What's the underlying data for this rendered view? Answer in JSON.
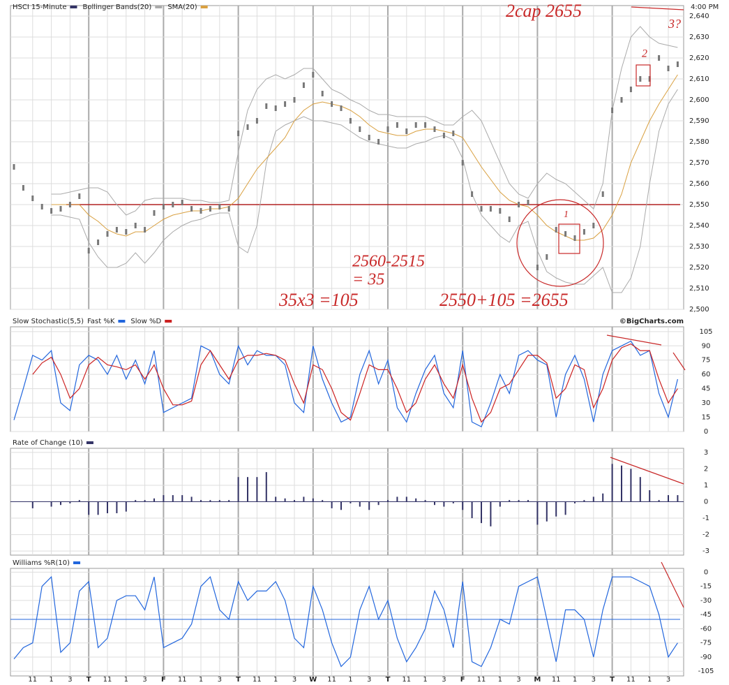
{
  "chart_data": [
    {
      "type": "candlestick",
      "time_label": "4:00 PM",
      "series": [
        {
          "name": "HSCI 15-Minute",
          "color": "#333366",
          "values": [
            2568,
            2558,
            2553,
            2549,
            2547,
            2548,
            2550,
            2554,
            2528,
            2532,
            2536,
            2538,
            2537,
            2540,
            2538,
            2546,
            2549,
            2550,
            2551,
            2548,
            2547,
            2548,
            2549,
            2548,
            2584,
            2587,
            2590,
            2597,
            2596,
            2598,
            2600,
            2607,
            2612,
            2603,
            2598,
            2596,
            2590,
            2586,
            2582,
            2580,
            2586,
            2588,
            2585,
            2588,
            2588,
            2586,
            2583,
            2584,
            2570,
            2555,
            2548,
            2548,
            2547,
            2543,
            2550,
            2551,
            2520,
            2525,
            2538,
            2536,
            2534,
            2537,
            2540,
            2555,
            2595,
            2600,
            2605,
            2610,
            2610,
            2620,
            2615,
            2617
          ]
        },
        {
          "name": "Bollinger Bands(20)",
          "color": "#aaaaaa",
          "upper": [
            null,
            null,
            null,
            null,
            2555,
            2555,
            2556,
            2557,
            2558,
            2558,
            2556,
            2550,
            2545,
            2547,
            2552,
            2553,
            2553,
            2553,
            2553,
            2552,
            2552,
            2551,
            2551,
            2552,
            2575,
            2595,
            2605,
            2610,
            2612,
            2610,
            2612,
            2615,
            2615,
            2610,
            2605,
            2603,
            2600,
            2598,
            2595,
            2593,
            2593,
            2592,
            2592,
            2592,
            2592,
            2590,
            2588,
            2588,
            2592,
            2595,
            2590,
            2580,
            2570,
            2560,
            2555,
            2553,
            2560,
            2565,
            2562,
            2560,
            2556,
            2552,
            2548,
            2560,
            2595,
            2615,
            2630,
            2635,
            2630,
            2627,
            2626,
            2625
          ],
          "lower": [
            null,
            null,
            null,
            null,
            2545,
            2545,
            2544,
            2543,
            2532,
            2525,
            2520,
            2520,
            2522,
            2527,
            2522,
            2527,
            2533,
            2537,
            2540,
            2542,
            2543,
            2545,
            2546,
            2546,
            2530,
            2527,
            2540,
            2570,
            2585,
            2588,
            2590,
            2592,
            2590,
            2590,
            2589,
            2588,
            2585,
            2582,
            2580,
            2579,
            2578,
            2577,
            2577,
            2579,
            2580,
            2582,
            2583,
            2581,
            2572,
            2555,
            2545,
            2540,
            2535,
            2532,
            2540,
            2542,
            2528,
            2518,
            2515,
            2513,
            2512,
            2512,
            2516,
            2520,
            2508,
            2508,
            2515,
            2530,
            2560,
            2585,
            2598,
            2605
          ]
        },
        {
          "name": "SMA(20)",
          "color": "#d9a040",
          "values": [
            null,
            null,
            null,
            null,
            2550,
            2550,
            2550,
            2550,
            2545,
            2542,
            2538,
            2536,
            2535,
            2537,
            2537,
            2540,
            2543,
            2545,
            2546,
            2547,
            2547,
            2548,
            2548,
            2549,
            2553,
            2560,
            2567,
            2572,
            2577,
            2582,
            2590,
            2595,
            2598,
            2599,
            2598,
            2597,
            2595,
            2592,
            2588,
            2585,
            2584,
            2583,
            2583,
            2585,
            2586,
            2586,
            2585,
            2584,
            2582,
            2575,
            2568,
            2562,
            2556,
            2552,
            2550,
            2549,
            2545,
            2540,
            2537,
            2535,
            2533,
            2533,
            2534,
            2538,
            2545,
            2555,
            2570,
            2580,
            2590,
            2598,
            2605,
            2612
          ]
        }
      ],
      "reference_line": {
        "value": 2550,
        "color": "#b22222"
      },
      "annotations": [
        "2cap 2655",
        "3?",
        "2",
        "1",
        "2560-2515",
        "= 35",
        "35x3 =105",
        "2550+105 =2655"
      ],
      "ylim": [
        2500,
        2645
      ],
      "yticks": [
        {
          "value": 2500,
          "label": "2,500"
        },
        {
          "value": 2510,
          "label": "2,510"
        },
        {
          "value": 2520,
          "label": "2,520"
        },
        {
          "value": 2530,
          "label": "2,530"
        },
        {
          "value": 2540,
          "label": "2,540"
        },
        {
          "value": 2550,
          "label": "2,550"
        },
        {
          "value": 2560,
          "label": "2,560"
        },
        {
          "value": 2570,
          "label": "2,570"
        },
        {
          "value": 2580,
          "label": "2,580"
        },
        {
          "value": 2590,
          "label": "2,590"
        },
        {
          "value": 2600,
          "label": "2,600"
        },
        {
          "value": 2610,
          "label": "2,610"
        },
        {
          "value": 2620,
          "label": "2,620"
        },
        {
          "value": 2630,
          "label": "2,630"
        },
        {
          "value": 2640,
          "label": "2,640"
        }
      ],
      "grid": true
    },
    {
      "type": "line",
      "title": "Slow Stochastic(5,5)",
      "source": "©BigCharts.com",
      "series": [
        {
          "name": "Fast %K",
          "color": "#2266dd",
          "values": [
            12,
            45,
            80,
            75,
            85,
            30,
            22,
            70,
            80,
            75,
            60,
            80,
            55,
            75,
            50,
            85,
            20,
            25,
            30,
            35,
            90,
            85,
            60,
            50,
            90,
            70,
            85,
            80,
            80,
            70,
            30,
            20,
            90,
            55,
            30,
            10,
            15,
            60,
            85,
            50,
            75,
            25,
            10,
            40,
            65,
            80,
            40,
            25,
            85,
            10,
            5,
            30,
            60,
            40,
            80,
            85,
            75,
            70,
            15,
            60,
            80,
            55,
            10,
            60,
            85,
            90,
            95,
            80,
            85,
            40,
            15,
            55
          ]
        },
        {
          "name": "Slow %D",
          "color": "#cc2222",
          "values": [
            null,
            null,
            60,
            72,
            78,
            60,
            35,
            45,
            70,
            78,
            70,
            68,
            65,
            70,
            55,
            70,
            45,
            28,
            28,
            32,
            70,
            85,
            70,
            55,
            75,
            80,
            80,
            82,
            80,
            75,
            50,
            30,
            70,
            65,
            45,
            20,
            12,
            40,
            70,
            65,
            65,
            45,
            20,
            30,
            55,
            70,
            50,
            35,
            70,
            35,
            10,
            20,
            45,
            50,
            65,
            80,
            80,
            72,
            35,
            45,
            70,
            65,
            25,
            45,
            75,
            88,
            92,
            85,
            85,
            55,
            30,
            45
          ]
        }
      ],
      "ylim": [
        0,
        110
      ],
      "yticks": [
        0,
        15,
        30,
        45,
        60,
        75,
        90,
        105
      ],
      "grid": true
    },
    {
      "type": "bar",
      "title": "Rate of Change (10)",
      "color": "#333366",
      "values": [
        null,
        null,
        -0.4,
        null,
        -0.3,
        -0.2,
        -0.1,
        0.1,
        -0.8,
        -0.8,
        -0.7,
        -0.7,
        -0.6,
        0.1,
        0.1,
        0.2,
        0.4,
        0.4,
        0.4,
        0.3,
        0.1,
        0.1,
        0.1,
        0.1,
        1.5,
        1.5,
        1.5,
        1.8,
        0.3,
        0.2,
        0.1,
        0.3,
        0.2,
        0.1,
        -0.4,
        -0.5,
        -0.1,
        -0.3,
        -0.5,
        -0.2,
        0.1,
        0.3,
        0.3,
        0.2,
        0.1,
        -0.2,
        -0.3,
        -0.1,
        -0.5,
        -1.0,
        -1.3,
        -1.5,
        -0.3,
        0.1,
        0.1,
        0.1,
        -1.4,
        -1.2,
        -0.9,
        -0.8,
        -0.1,
        0.1,
        0.3,
        0.5,
        2.3,
        2.2,
        2.0,
        1.5,
        0.7,
        0.1,
        0.4,
        0.4
      ],
      "ylim": [
        -3.25,
        3.25
      ],
      "yticks": [
        -3,
        -2,
        -1,
        0,
        1,
        2,
        3
      ],
      "grid": true
    },
    {
      "type": "line",
      "title": "Williams %R(10)",
      "categories": [
        null,
        null,
        "11",
        null,
        "1",
        null,
        "3",
        null,
        "T",
        null,
        "11",
        null,
        "1",
        null,
        "3",
        null,
        "F",
        null,
        "11",
        null,
        "1",
        null,
        "3",
        null,
        "T",
        null,
        "11",
        null,
        "1",
        null,
        "3",
        null,
        "W",
        null,
        "11",
        null,
        "1",
        null,
        "3",
        null,
        "T",
        null,
        "11",
        null,
        "1",
        null,
        "3",
        null,
        "F",
        null,
        "11",
        null,
        "1",
        null,
        "3",
        null,
        "M",
        null,
        "11",
        null,
        "1",
        null,
        "3",
        null,
        "T",
        null,
        "11",
        null,
        "1",
        null,
        "3",
        null
      ],
      "series": [
        {
          "color": "#2266dd",
          "values": [
            -92,
            -80,
            -75,
            -15,
            -5,
            -85,
            -75,
            -20,
            -10,
            -80,
            -70,
            -30,
            -25,
            -25,
            -40,
            -5,
            -80,
            -75,
            -70,
            -55,
            -15,
            -5,
            -40,
            -50,
            -10,
            -30,
            -20,
            -20,
            -10,
            -30,
            -70,
            -80,
            -15,
            -40,
            -75,
            -100,
            -90,
            -40,
            -15,
            -50,
            -30,
            -70,
            -95,
            -80,
            -60,
            -20,
            -40,
            -80,
            -10,
            -95,
            -100,
            -80,
            -50,
            -55,
            -15,
            -10,
            -5,
            -50,
            -95,
            -40,
            -40,
            -50,
            -90,
            -40,
            -5,
            -5,
            -5,
            -10,
            -15,
            -45,
            -90,
            -75
          ]
        }
      ],
      "reference_line": {
        "value": -50,
        "color": "#2266dd"
      },
      "ylim": [
        -110,
        4
      ],
      "yticks": [
        -105,
        -90,
        -75,
        -60,
        -45,
        -30,
        -15,
        0
      ],
      "grid": true
    }
  ]
}
